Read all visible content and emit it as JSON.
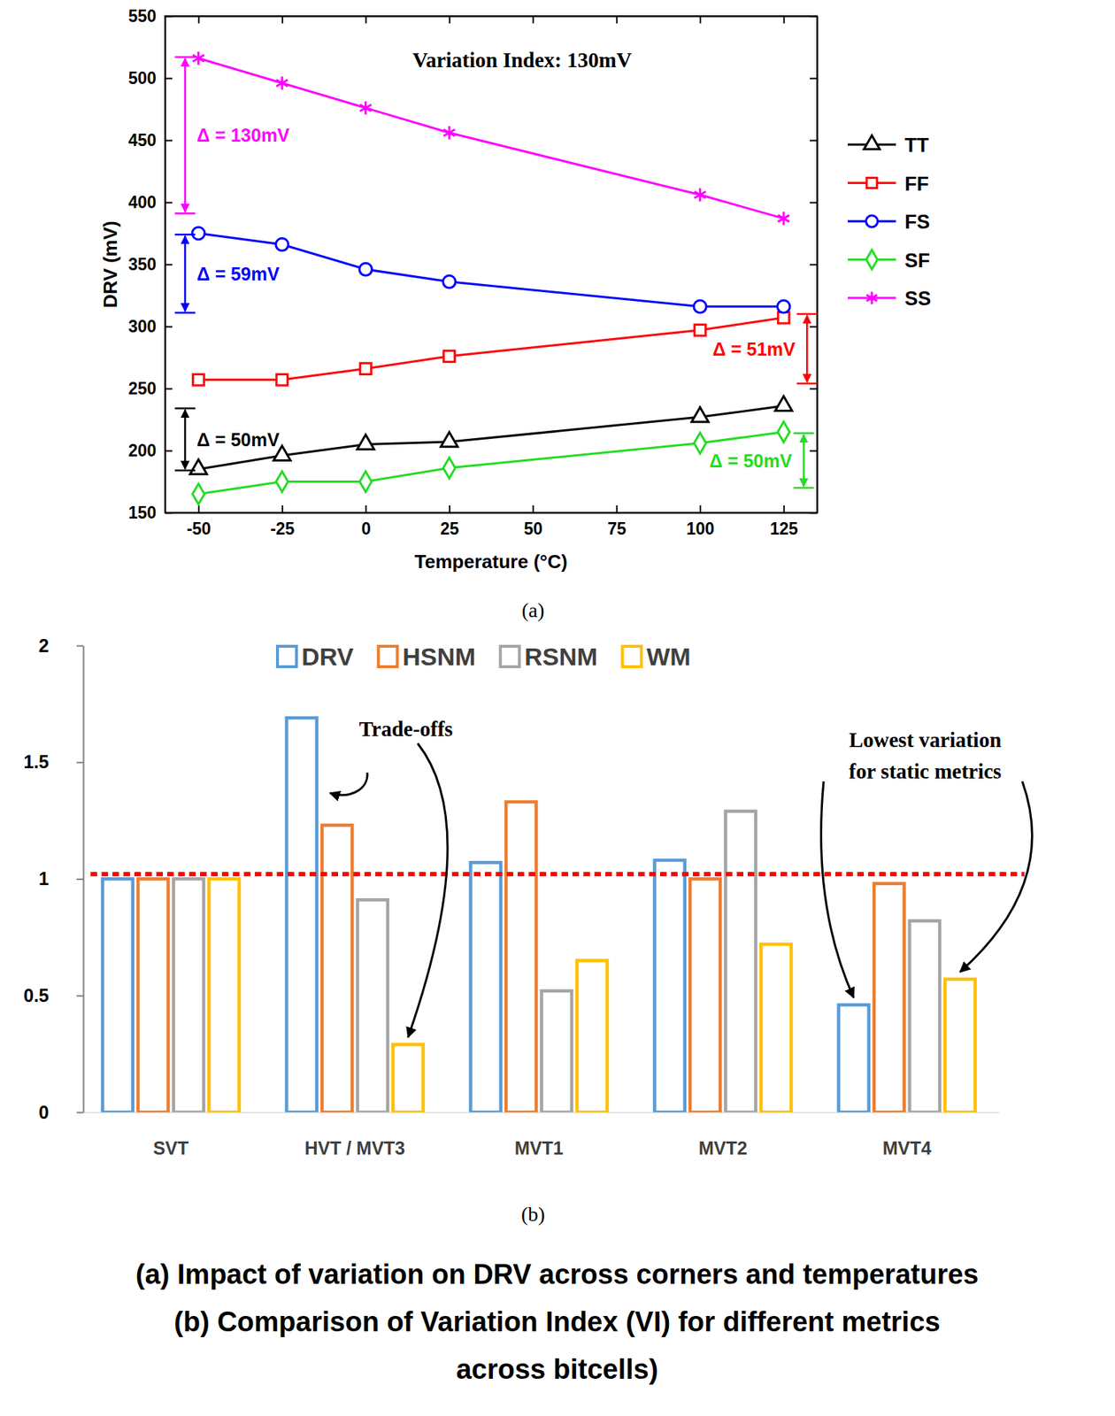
{
  "chart_data": [
    {
      "type": "line",
      "label": "(a)",
      "title": "Variation Index: 130mV",
      "x_label": "Temperature (°C)",
      "y_label": "DRV (mV)",
      "x": [
        -50,
        -25,
        0,
        25,
        100,
        125
      ],
      "xlim": [
        -60,
        135
      ],
      "xticks": [
        -50,
        -25,
        0,
        25,
        50,
        75,
        100,
        125
      ],
      "ylim": [
        150,
        550
      ],
      "yticks": [
        150,
        200,
        250,
        300,
        350,
        400,
        450,
        500,
        550
      ],
      "legend": "right",
      "series": [
        {
          "name": "TT",
          "color": "#000000",
          "marker": "triangle",
          "values": [
            185,
            196,
            205,
            207,
            227,
            236
          ]
        },
        {
          "name": "FF",
          "color": "#ff0000",
          "marker": "square",
          "values": [
            257,
            257,
            266,
            276,
            297,
            307
          ]
        },
        {
          "name": "FS",
          "color": "#0000ff",
          "marker": "circle",
          "values": [
            375,
            366,
            346,
            336,
            316,
            316
          ]
        },
        {
          "name": "SF",
          "color": "#22dd22",
          "marker": "diamond",
          "values": [
            165,
            175,
            175,
            186,
            206,
            215
          ]
        },
        {
          "name": "SS",
          "color": "#ff00ff",
          "marker": "star",
          "values": [
            516,
            496,
            476,
            456,
            406,
            387
          ]
        }
      ],
      "annotations": [
        {
          "text": "Δ = 130mV",
          "color": "#ff00ff",
          "x": -54,
          "y": [
            517,
            391
          ]
        },
        {
          "text": "Δ = 59mV",
          "color": "#0000ff",
          "x": -54,
          "y": [
            374,
            311
          ]
        },
        {
          "text": "Δ = 50mV",
          "color": "#000000",
          "x": -54,
          "y": [
            234,
            184
          ]
        },
        {
          "text": "Δ = 51mV",
          "color": "#ff0000",
          "x": 132,
          "y": [
            310,
            254
          ]
        },
        {
          "text": "Δ = 50mV",
          "color": "#22dd22",
          "x": 131,
          "y": [
            214,
            170
          ]
        }
      ]
    },
    {
      "type": "bar",
      "label": "(b)",
      "categories": [
        "SVT",
        "HVT / MVT3",
        "MVT1",
        "MVT2",
        "MVT4"
      ],
      "ylim": [
        0,
        2
      ],
      "yticks": [
        0,
        0.5,
        1,
        1.5,
        2
      ],
      "legend": "top",
      "threshold": 1.02,
      "series": [
        {
          "name": "DRV",
          "color": "#5b9bd5",
          "values": [
            1,
            1.69,
            1.07,
            1.08,
            0.46
          ]
        },
        {
          "name": "HSNM",
          "color": "#ed7d31",
          "values": [
            1,
            1.23,
            1.33,
            1.0,
            0.98
          ]
        },
        {
          "name": "RSNM",
          "color": "#a5a5a5",
          "values": [
            1,
            0.91,
            0.52,
            1.29,
            0.82
          ]
        },
        {
          "name": "WM",
          "color": "#ffc000",
          "values": [
            1,
            0.29,
            0.65,
            0.72,
            0.57
          ]
        }
      ],
      "annotations": [
        {
          "text": "Trade-offs"
        },
        {
          "lines": [
            "Lowest variation",
            "for static metrics"
          ]
        }
      ]
    }
  ],
  "caption": [
    "(a) Impact of variation on DRV across corners and temperatures",
    "(b) Comparison of Variation Index (VI) for different metrics",
    "across bitcells)"
  ]
}
